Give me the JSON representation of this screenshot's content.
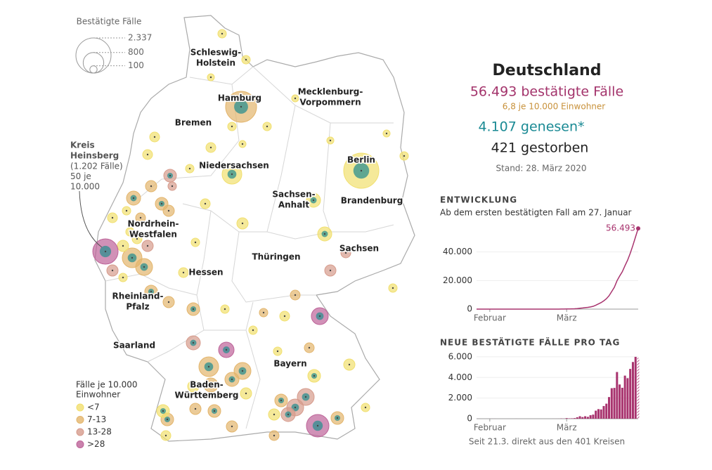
{
  "map": {
    "size_legend": {
      "title": "Bestätigte Fälle",
      "items": [
        {
          "value": 2337,
          "label": "2.337"
        },
        {
          "value": 800,
          "label": "800"
        },
        {
          "value": 100,
          "label": "100"
        }
      ]
    },
    "states": [
      [
        "Schleswig-",
        "Holstein"
      ],
      [
        "Hamburg"
      ],
      [
        "Mecklenburg-",
        "Vorpommern"
      ],
      [
        "Bremen"
      ],
      [
        "Niedersachsen"
      ],
      [
        "Berlin"
      ],
      [
        "Sachsen-",
        "Anhalt"
      ],
      [
        "Brandenburg"
      ],
      [
        "Nordrhein-",
        "Westfalen"
      ],
      [
        "Sachsen"
      ],
      [
        "Thüringen"
      ],
      [
        "Hessen"
      ],
      [
        "Rheinland-",
        "Pfalz"
      ],
      [
        "Saarland"
      ],
      [
        "Bayern"
      ],
      [
        "Baden-",
        "Württemberg"
      ]
    ],
    "annotation": {
      "title": [
        "Kreis",
        "Heinsberg"
      ],
      "lines": [
        "(1.202 Fälle)",
        "50 je",
        "10.000"
      ]
    },
    "color_legend": {
      "title": [
        "Fälle je 10.000",
        "Einwohner"
      ],
      "items": [
        {
          "label": "<7",
          "color": "#f1df6e"
        },
        {
          "label": "7-13",
          "color": "#e3b56c"
        },
        {
          "label": "13-28",
          "color": "#d69b8c"
        },
        {
          "label": ">28",
          "color": "#bd6398"
        }
      ]
    }
  },
  "summary": {
    "title": "Deutschland",
    "confirmed": "56.493 bestätigte Fälle",
    "per_capita": "6,8  je 10.000 Einwohner",
    "recovered": "4.107 genesen*",
    "deaths": "421 gestorben",
    "date": "Stand: 28. März 2020"
  },
  "chart_data": [
    {
      "type": "line",
      "title": "ENTWICKLUNG",
      "subtitle": "Ab dem ersten bestätigten Fall am 27. Januar",
      "color": "#a8336e",
      "categories": [
        null,
        null,
        null,
        null,
        null,
        "Februar",
        null,
        null,
        null,
        null,
        null,
        null,
        null,
        null,
        null,
        null,
        null,
        null,
        null,
        null,
        null,
        null,
        null,
        null,
        null,
        null,
        null,
        null,
        null,
        null,
        null,
        null,
        null,
        null,
        "März",
        null,
        null,
        null,
        null,
        null,
        null,
        null,
        null,
        null,
        null,
        null,
        null,
        null,
        null,
        null,
        null,
        null,
        null,
        null,
        null,
        null,
        null,
        null,
        null,
        null,
        null,
        null
      ],
      "values": [
        1,
        4,
        4,
        4,
        5,
        8,
        10,
        12,
        12,
        12,
        13,
        13,
        14,
        14,
        14,
        16,
        16,
        16,
        16,
        16,
        16,
        16,
        16,
        16,
        16,
        16,
        16,
        16,
        16,
        18,
        21,
        26,
        48,
        57,
        117,
        152,
        192,
        252,
        392,
        632,
        792,
        1032,
        1212,
        1552,
        1952,
        2732,
        3662,
        4562,
        5792,
        7252,
        9352,
        12312,
        15302,
        19832,
        23152,
        26153,
        30333,
        34263,
        39093,
        44593,
        50593,
        56493
      ],
      "value_labels": [
        null,
        null,
        null,
        null,
        null,
        null,
        null,
        null,
        null,
        null,
        null,
        null,
        null,
        null,
        null,
        null,
        null,
        null,
        null,
        null,
        null,
        null,
        null,
        null,
        null,
        null,
        null,
        null,
        null,
        null,
        null,
        null,
        null,
        null,
        null,
        null,
        null,
        null,
        null,
        null,
        null,
        null,
        null,
        null,
        null,
        null,
        null,
        null,
        null,
        null,
        null,
        null,
        null,
        null,
        null,
        null,
        null,
        null,
        null,
        null,
        null,
        "56.493"
      ],
      "ylim": [
        0,
        60000
      ],
      "yticks": [
        0,
        {
          "value": 20000,
          "label": "20.000"
        },
        {
          "value": 40000,
          "label": "40.000"
        }
      ]
    },
    {
      "type": "bar",
      "title": "NEUE BESTÄTIGTE FÄLLE PRO TAG",
      "color": "#a8336e",
      "categories": [
        null,
        null,
        null,
        null,
        null,
        "Februar",
        null,
        null,
        null,
        null,
        null,
        null,
        null,
        null,
        null,
        null,
        null,
        null,
        null,
        null,
        null,
        null,
        null,
        null,
        null,
        null,
        null,
        null,
        null,
        null,
        null,
        null,
        null,
        null,
        "März",
        null,
        null,
        null,
        null,
        null,
        null,
        null,
        null,
        null,
        null,
        null,
        null,
        null,
        null,
        null,
        null,
        null,
        null,
        null,
        null,
        null,
        null,
        null,
        null,
        null,
        null,
        null
      ],
      "values": [
        1,
        3,
        0,
        0,
        1,
        3,
        2,
        2,
        0,
        0,
        1,
        0,
        1,
        0,
        0,
        2,
        0,
        0,
        0,
        0,
        0,
        0,
        0,
        0,
        0,
        0,
        0,
        0,
        0,
        2,
        3,
        5,
        22,
        9,
        60,
        35,
        40,
        60,
        140,
        240,
        160,
        240,
        180,
        340,
        400,
        780,
        930,
        900,
        1230,
        1460,
        2100,
        2960,
        2990,
        4530,
        3320,
        3001,
        4180,
        3930,
        4830,
        5500,
        6000,
        5900
      ],
      "ylim": [
        0,
        6200
      ],
      "yticks": [
        0,
        {
          "value": 2000,
          "label": "2.000"
        },
        {
          "value": 4000,
          "label": "4.000"
        },
        {
          "value": 6000,
          "label": "6.000"
        }
      ],
      "footnote": "Seit 21.3. direkt aus den 401 Kreisen"
    }
  ]
}
